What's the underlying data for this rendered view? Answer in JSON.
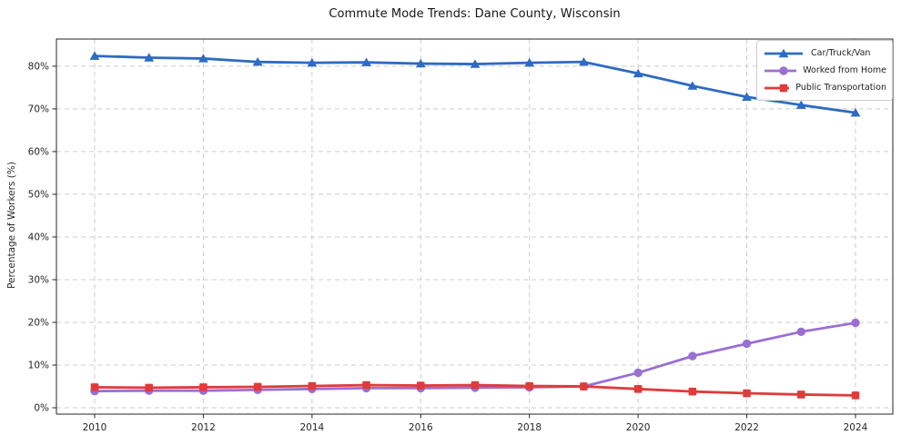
{
  "chart_data": {
    "type": "line",
    "title": "Commute Mode Trends: Dane County, Wisconsin",
    "xlabel": "",
    "ylabel": "Percentage of Workers (%)",
    "x": [
      2010,
      2011,
      2012,
      2013,
      2014,
      2015,
      2016,
      2017,
      2018,
      2019,
      2020,
      2021,
      2022,
      2023,
      2024
    ],
    "series": [
      {
        "name": "Car/Truck/Van",
        "color": "#2e6bc2",
        "marker": "triangle",
        "values": [
          82.4,
          82.0,
          81.8,
          81.0,
          80.8,
          80.9,
          80.6,
          80.5,
          80.8,
          81.0,
          78.3,
          75.4,
          72.8,
          70.9,
          69.1
        ]
      },
      {
        "name": "Worked from Home",
        "color": "#9a6fd4",
        "marker": "circle",
        "values": [
          3.9,
          4.0,
          4.0,
          4.2,
          4.4,
          4.6,
          4.6,
          4.7,
          4.8,
          5.0,
          8.2,
          12.1,
          15.0,
          17.8,
          19.9
        ]
      },
      {
        "name": "Public Transportation",
        "color": "#e03b3b",
        "marker": "square",
        "values": [
          4.8,
          4.7,
          4.8,
          4.9,
          5.1,
          5.3,
          5.2,
          5.3,
          5.1,
          5.0,
          4.4,
          3.8,
          3.4,
          3.1,
          2.9
        ]
      }
    ],
    "xticks": [
      2010,
      2012,
      2014,
      2016,
      2018,
      2020,
      2022,
      2024
    ],
    "yticks": [
      0,
      10,
      20,
      30,
      40,
      50,
      60,
      70,
      80
    ],
    "ytick_labels": [
      "0%",
      "10%",
      "20%",
      "30%",
      "40%",
      "50%",
      "60%",
      "70%",
      "80%"
    ],
    "ylim": [
      0,
      86
    ],
    "grid": true,
    "grid_style": "dashed",
    "legend_position": "upper right"
  }
}
